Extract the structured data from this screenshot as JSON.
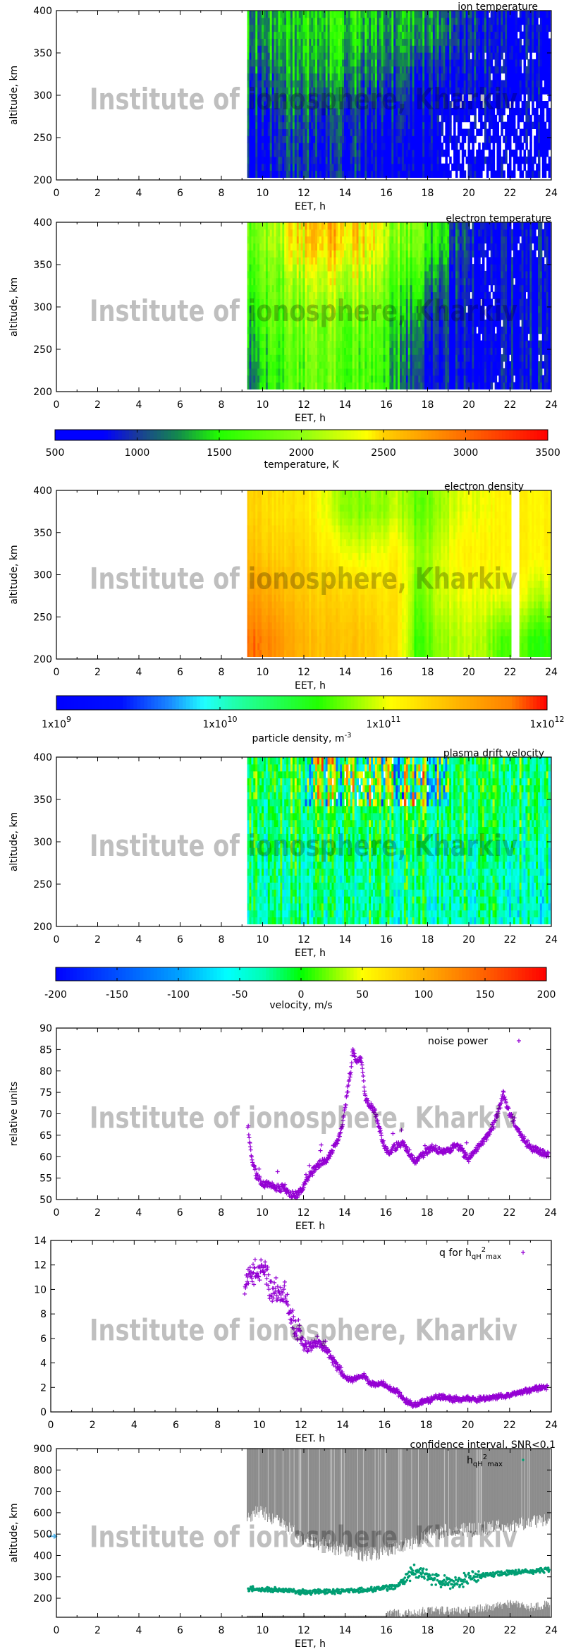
{
  "watermark": "Institute of ionosphere, Kharkiv",
  "chart_data": [
    {
      "type": "heatmap",
      "title": "ion temperature",
      "xlabel": "EET, h",
      "ylabel": "altitude, km",
      "xlim": [
        0,
        24
      ],
      "ylim": [
        200,
        400
      ],
      "xticks": [
        0,
        2,
        4,
        6,
        8,
        10,
        12,
        14,
        16,
        18,
        20,
        22,
        24
      ],
      "yticks": [
        200,
        250,
        300,
        350,
        400
      ],
      "data_range_x": [
        9.25,
        23.9
      ],
      "x_centers": [
        9.5,
        10.5,
        11.5,
        12.5,
        13.5,
        14.5,
        15.5,
        16.5,
        17.5,
        18.5,
        19.5,
        20.5,
        21.5,
        22.5,
        23.5
      ],
      "y_centers": [
        225,
        275,
        325,
        375
      ],
      "values": [
        [
          800,
          900,
          1000,
          900,
          900,
          900,
          800,
          800,
          700,
          700,
          700,
          700,
          700,
          700,
          700
        ],
        [
          900,
          1000,
          1100,
          1000,
          1000,
          1000,
          900,
          900,
          800,
          800,
          700,
          700,
          700,
          700,
          700
        ],
        [
          1100,
          1200,
          1300,
          1300,
          1300,
          1200,
          1200,
          1100,
          1000,
          900,
          800,
          800,
          800,
          800,
          800
        ],
        [
          1300,
          1400,
          1400,
          1500,
          1500,
          1500,
          1400,
          1300,
          1400,
          1200,
          1000,
          900,
          800,
          800,
          800
        ]
      ],
      "colorbar": "temperature"
    },
    {
      "type": "heatmap",
      "title": "electron temperature",
      "xlabel": "EET, h",
      "ylabel": "altitude, km",
      "xlim": [
        0,
        24
      ],
      "ylim": [
        200,
        400
      ],
      "xticks": [
        0,
        2,
        4,
        6,
        8,
        10,
        12,
        14,
        16,
        18,
        20,
        22,
        24
      ],
      "yticks": [
        200,
        250,
        300,
        350,
        400
      ],
      "data_range_x": [
        9.25,
        23.9
      ],
      "x_centers": [
        9.5,
        10.5,
        11.5,
        12.5,
        13.5,
        14.5,
        15.5,
        16.5,
        17.5,
        18.5,
        19.5,
        20.5,
        21.5,
        22.5,
        23.5
      ],
      "y_centers": [
        225,
        275,
        325,
        375
      ],
      "values": [
        [
          1200,
          1500,
          1700,
          1800,
          1800,
          1700,
          1600,
          1400,
          900,
          800,
          800,
          800,
          800,
          800,
          800
        ],
        [
          1400,
          1700,
          1800,
          1900,
          1900,
          1800,
          1700,
          1500,
          1100,
          900,
          800,
          800,
          800,
          800,
          800
        ],
        [
          1600,
          1800,
          2000,
          2100,
          2200,
          2100,
          2000,
          1700,
          1400,
          1100,
          900,
          800,
          800,
          800,
          800
        ],
        [
          1800,
          2000,
          2400,
          2500,
          2600,
          2500,
          2300,
          2000,
          1800,
          1500,
          1000,
          900,
          800,
          800,
          800
        ]
      ],
      "colorbar": "temperature"
    },
    {
      "type": "colorbar",
      "label": "temperature, K",
      "scale": "linear",
      "range": [
        500,
        3500
      ],
      "ticks": [
        500,
        1000,
        1500,
        2000,
        2500,
        3000,
        3500
      ],
      "tick_labels": [
        "500",
        "1000",
        "1500",
        "2000",
        "2500",
        "3000",
        "3500"
      ],
      "stops": [
        [
          500,
          "#0000ff"
        ],
        [
          800,
          "#0000ff"
        ],
        [
          1000,
          "#1a3a9a"
        ],
        [
          1250,
          "#138a4c"
        ],
        [
          1500,
          "#22ff00"
        ],
        [
          2000,
          "#8cff10"
        ],
        [
          2400,
          "#ffff00"
        ],
        [
          2500,
          "#ffd000"
        ],
        [
          3000,
          "#ff6a00"
        ],
        [
          3500,
          "#ff0000"
        ]
      ]
    },
    {
      "type": "heatmap",
      "title": "electron density",
      "xlabel": "EET, h",
      "ylabel": "altitude, km",
      "xlim": [
        0,
        24
      ],
      "ylim": [
        200,
        400
      ],
      "xticks": [
        0,
        2,
        4,
        6,
        8,
        10,
        12,
        14,
        16,
        18,
        20,
        22,
        24
      ],
      "yticks": [
        200,
        250,
        300,
        350,
        400
      ],
      "data_range_x": [
        9.25,
        23.9
      ],
      "gaps": [
        [
          22.15,
          22.45
        ]
      ],
      "x_centers": [
        9.5,
        10.5,
        11.5,
        12.5,
        13.5,
        14.5,
        15.5,
        16.5,
        17.5,
        18.5,
        19.5,
        20.5,
        21.5,
        22.5,
        23.5
      ],
      "y_centers": [
        225,
        275,
        325,
        375
      ],
      "values": [
        [
          630000000000.0,
          500000000000.0,
          320000000000.0,
          250000000000.0,
          250000000000.0,
          250000000000.0,
          200000000000.0,
          160000000000.0,
          40000000000.0,
          63000000000.0,
          80000000000.0,
          80000000000.0,
          50000000000.0,
          50000000000.0,
          40000000000.0
        ],
        [
          400000000000.0,
          320000000000.0,
          250000000000.0,
          200000000000.0,
          200000000000.0,
          200000000000.0,
          160000000000.0,
          160000000000.0,
          50000000000.0,
          80000000000.0,
          100000000000.0,
          100000000000.0,
          100000000000.0,
          100000000000.0,
          80000000000.0
        ],
        [
          250000000000.0,
          200000000000.0,
          200000000000.0,
          160000000000.0,
          130000000000.0,
          100000000000.0,
          100000000000.0,
          130000000000.0,
          63000000000.0,
          80000000000.0,
          130000000000.0,
          130000000000.0,
          130000000000.0,
          130000000000.0,
          130000000000.0
        ],
        [
          200000000000.0,
          160000000000.0,
          160000000000.0,
          130000000000.0,
          80000000000.0,
          63000000000.0,
          63000000000.0,
          80000000000.0,
          50000000000.0,
          63000000000.0,
          100000000000.0,
          100000000000.0,
          130000000000.0,
          130000000000.0,
          130000000000.0
        ]
      ],
      "colorbar": "density"
    },
    {
      "type": "colorbar",
      "label": "particle density, m",
      "label_sup": "-3",
      "scale": "log",
      "range": [
        1000000000.0,
        1000000000000.0
      ],
      "ticks": [
        1000000000.0,
        10000000000.0,
        100000000000.0,
        1000000000000.0
      ],
      "tick_labels": [
        "1x10",
        "1x10",
        "1x10",
        "1x10"
      ],
      "tick_exponents": [
        "9",
        "10",
        "11",
        "12"
      ],
      "stops": [
        [
          1000000000.0,
          "#0000ff"
        ],
        [
          2500000000.0,
          "#0010ff"
        ],
        [
          5000000000.0,
          "#1a8cff"
        ],
        [
          8000000000.0,
          "#20ffff"
        ],
        [
          12000000000.0,
          "#20ffb0"
        ],
        [
          40000000000.0,
          "#22ff00"
        ],
        [
          110000000000.0,
          "#ffff00"
        ],
        [
          300000000000.0,
          "#ffb000"
        ],
        [
          600000000000.0,
          "#ff8000"
        ],
        [
          1000000000000.0,
          "#ff0000"
        ]
      ]
    },
    {
      "type": "heatmap",
      "title": "plasma drift velocity",
      "xlabel": "EET, h",
      "ylabel": "altitude, km",
      "xlim": [
        0,
        24
      ],
      "ylim": [
        200,
        400
      ],
      "xticks": [
        0,
        2,
        4,
        6,
        8,
        10,
        12,
        14,
        16,
        18,
        20,
        22,
        24
      ],
      "yticks": [
        200,
        250,
        300,
        350,
        400
      ],
      "data_range_x": [
        9.25,
        23.9
      ],
      "x_centers": [
        9.5,
        10.5,
        11.5,
        12.5,
        13.5,
        14.5,
        15.5,
        16.5,
        17.5,
        18.5,
        19.5,
        20.5,
        21.5,
        22.5,
        23.5
      ],
      "y_centers": [
        225,
        275,
        325,
        375
      ],
      "values": [
        [
          -30,
          -30,
          -25,
          -30,
          -30,
          -30,
          -30,
          -35,
          -35,
          -35,
          -30,
          -30,
          -40,
          -40,
          -40
        ],
        [
          -25,
          -25,
          -20,
          -25,
          -25,
          -25,
          -25,
          -25,
          -25,
          -25,
          -25,
          -25,
          -30,
          -30,
          -30
        ],
        [
          -15,
          -15,
          -10,
          -15,
          -10,
          -10,
          -15,
          -15,
          -15,
          -15,
          -15,
          -15,
          -20,
          -20,
          -20
        ],
        [
          -10,
          -5,
          0,
          0,
          10,
          10,
          0,
          -5,
          -10,
          -10,
          -10,
          -10,
          -10,
          -10,
          -10
        ]
      ],
      "colorbar": "velocity"
    },
    {
      "type": "colorbar",
      "label": "velocity, m/s",
      "scale": "linear",
      "range": [
        -200,
        200
      ],
      "ticks": [
        -200,
        -150,
        -100,
        -50,
        0,
        50,
        100,
        150,
        200
      ],
      "tick_labels": [
        "-200",
        "-150",
        "-100",
        "-50",
        "0",
        "50",
        "100",
        "150",
        "200"
      ],
      "stops": [
        [
          -200,
          "#0000ff"
        ],
        [
          -150,
          "#0050ff"
        ],
        [
          -100,
          "#00a0ff"
        ],
        [
          -60,
          "#00ffff"
        ],
        [
          -30,
          "#00ffb0"
        ],
        [
          0,
          "#00ff00"
        ],
        [
          50,
          "#ffff00"
        ],
        [
          100,
          "#ffb000"
        ],
        [
          150,
          "#ff6000"
        ],
        [
          200,
          "#ff0000"
        ]
      ]
    },
    {
      "type": "scatter",
      "xlabel": "EET. h",
      "ylabel": "relative units",
      "xlim": [
        0,
        24
      ],
      "ylim": [
        50,
        90
      ],
      "xticks": [
        0,
        2,
        4,
        6,
        8,
        10,
        12,
        14,
        16,
        18,
        20,
        22,
        24
      ],
      "yticks": [
        50,
        55,
        60,
        65,
        70,
        75,
        80,
        85,
        90
      ],
      "legend": [
        {
          "t": "noise power"
        }
      ],
      "legend_position": "top-right",
      "marker": "plus",
      "color": "#9400d3",
      "x": [
        9.3,
        9.4,
        9.5,
        9.7,
        9.9,
        10.2,
        10.5,
        10.8,
        11.0,
        11.3,
        11.6,
        11.9,
        12.2,
        12.5,
        12.8,
        13.1,
        13.4,
        13.7,
        13.9,
        14.1,
        14.3,
        14.4,
        14.6,
        14.8,
        15.0,
        15.2,
        15.5,
        15.7,
        15.9,
        16.1,
        16.4,
        16.8,
        17.1,
        17.4,
        17.7,
        18.0,
        18.4,
        18.7,
        19.0,
        19.3,
        19.6,
        20.0,
        20.4,
        20.8,
        21.2,
        21.5,
        21.7,
        22.0,
        22.3,
        22.7,
        23.1,
        23.5,
        23.9
      ],
      "y": [
        67,
        63,
        59,
        56,
        54,
        53.5,
        53,
        52.5,
        53,
        51.5,
        51,
        52,
        55,
        57,
        58.5,
        59,
        61.5,
        64,
        68,
        74,
        80,
        85,
        82,
        83,
        74,
        72,
        70,
        66,
        63,
        61,
        62,
        63.5,
        61,
        59,
        60,
        61.5,
        62,
        61,
        61.5,
        62.5,
        62,
        59.5,
        61.5,
        64,
        67,
        71,
        74.5,
        70,
        67,
        64,
        62,
        61,
        60.5
      ]
    },
    {
      "type": "scatter",
      "xlabel": "EET. h",
      "ylabel": "",
      "xlim": [
        0,
        24
      ],
      "ylim": [
        0,
        14
      ],
      "xticks": [
        0,
        2,
        4,
        6,
        8,
        10,
        12,
        14,
        16,
        18,
        20,
        22,
        24
      ],
      "yticks": [
        0,
        2,
        4,
        6,
        8,
        10,
        12,
        14
      ],
      "legend": [
        {
          "t": "q for h"
        },
        {
          "t": "qH",
          "s": "sub"
        },
        {
          "t": "2",
          "s": "sup"
        },
        {
          "t": "max",
          "s": "sub"
        }
      ],
      "legend_position": "top-right",
      "marker": "plus",
      "color": "#9400d3",
      "x": [
        9.3,
        9.5,
        9.7,
        9.9,
        10.1,
        10.3,
        10.5,
        10.8,
        11.0,
        11.2,
        11.5,
        11.7,
        12.0,
        12.3,
        12.6,
        12.9,
        13.2,
        13.5,
        13.8,
        14.1,
        14.4,
        14.7,
        15.0,
        15.3,
        15.7,
        16.0,
        16.3,
        16.7,
        17.0,
        17.4,
        17.8,
        18.2,
        18.5,
        18.9,
        19.3,
        19.8,
        20.3,
        20.8,
        21.3,
        21.8,
        22.3,
        22.8,
        23.3,
        23.8
      ],
      "y": [
        9.5,
        11.2,
        11.5,
        11.3,
        12,
        11.8,
        10,
        9.8,
        9.5,
        9.8,
        7.5,
        7,
        6,
        5.2,
        5.5,
        5.8,
        5.2,
        4.3,
        3.8,
        2.8,
        2.6,
        2.8,
        3,
        2.3,
        2.2,
        2.3,
        1.9,
        1.5,
        0.9,
        0.6,
        0.8,
        1.0,
        1.3,
        1.2,
        1.0,
        1.1,
        1.0,
        1.1,
        1.2,
        1.3,
        1.5,
        1.7,
        1.9,
        2.0
      ]
    },
    {
      "type": "scatter",
      "title": "confidence interval, SNR<0.1",
      "xlabel": "EET, h",
      "ylabel": "altitude, km",
      "xlim": [
        0,
        24
      ],
      "ylim": [
        111,
        900
      ],
      "xticks": [
        0,
        2,
        4,
        6,
        8,
        10,
        12,
        14,
        16,
        18,
        20,
        22,
        24
      ],
      "yticks": [
        200,
        300,
        400,
        500,
        600,
        700,
        800,
        900
      ],
      "legend": [
        {
          "t": "h"
        },
        {
          "t": "qH",
          "s": "sub"
        },
        {
          "t": "2",
          "s": "sup"
        },
        {
          "t": "max",
          "s": "sub"
        }
      ],
      "legend_position": "top-right",
      "marker": "dot",
      "color": "#009e73",
      "band_color": "#8c8c8c",
      "axis_marker": {
        "y": 490,
        "color": "#56b4e9"
      },
      "x": [
        9.3,
        10.0,
        11.0,
        12.0,
        13.0,
        14.0,
        15.0,
        16.0,
        16.5,
        17.0,
        17.3,
        17.8,
        18.3,
        18.8,
        19.3,
        19.8,
        20.3,
        21.0,
        22.0,
        23.0,
        23.9
      ],
      "y": [
        245,
        242,
        238,
        228,
        232,
        232,
        238,
        248,
        255,
        300,
        330,
        310,
        290,
        280,
        270,
        290,
        300,
        310,
        320,
        325,
        335
      ],
      "outliers": [
        [
          17.6,
          575
        ]
      ],
      "upper_band_bottom": {
        "x": [
          9.25,
          10,
          11,
          12,
          13,
          14,
          15,
          16,
          17,
          18,
          19,
          20,
          21,
          22,
          23,
          23.9
        ],
        "y": [
          590,
          600,
          540,
          480,
          450,
          420,
          400,
          420,
          450,
          490,
          520,
          520,
          530,
          540,
          560,
          570
        ]
      },
      "lower_band_top": {
        "x": [
          9.25,
          12,
          16,
          16.3,
          17,
          18,
          20,
          21,
          22,
          23,
          23.9
        ],
        "y": [
          118,
          118,
          118,
          125,
          120,
          135,
          135,
          150,
          165,
          150,
          165
        ]
      }
    }
  ]
}
